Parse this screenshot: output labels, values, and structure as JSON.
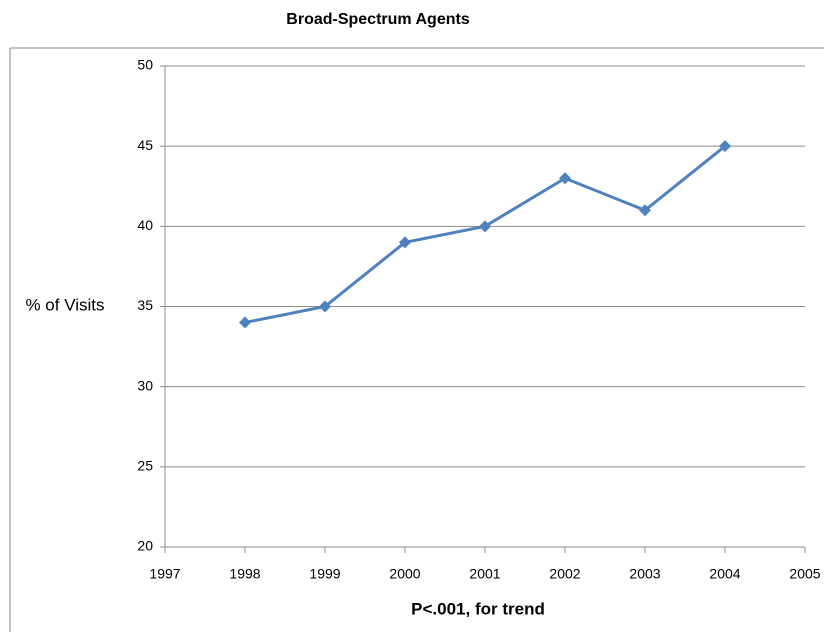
{
  "chart_data": {
    "type": "line",
    "title": "Broad-Spectrum Agents",
    "ylabel": "% of Visits",
    "xlabel": "P<.001, for trend",
    "series": [
      {
        "name": "Broad-Spectrum Agents",
        "color": "#4f81bd",
        "x": [
          1998,
          1999,
          2000,
          2001,
          2002,
          2003,
          2004
        ],
        "values": [
          34,
          35,
          39,
          40,
          43,
          41,
          45
        ]
      }
    ],
    "xlim": [
      1997,
      2005
    ],
    "xticks": [
      1997,
      1998,
      1999,
      2000,
      2001,
      2002,
      2003,
      2004,
      2005
    ],
    "ylim": [
      20,
      50
    ],
    "yticks": [
      20,
      25,
      30,
      35,
      40,
      45,
      50
    ],
    "grid": true
  }
}
